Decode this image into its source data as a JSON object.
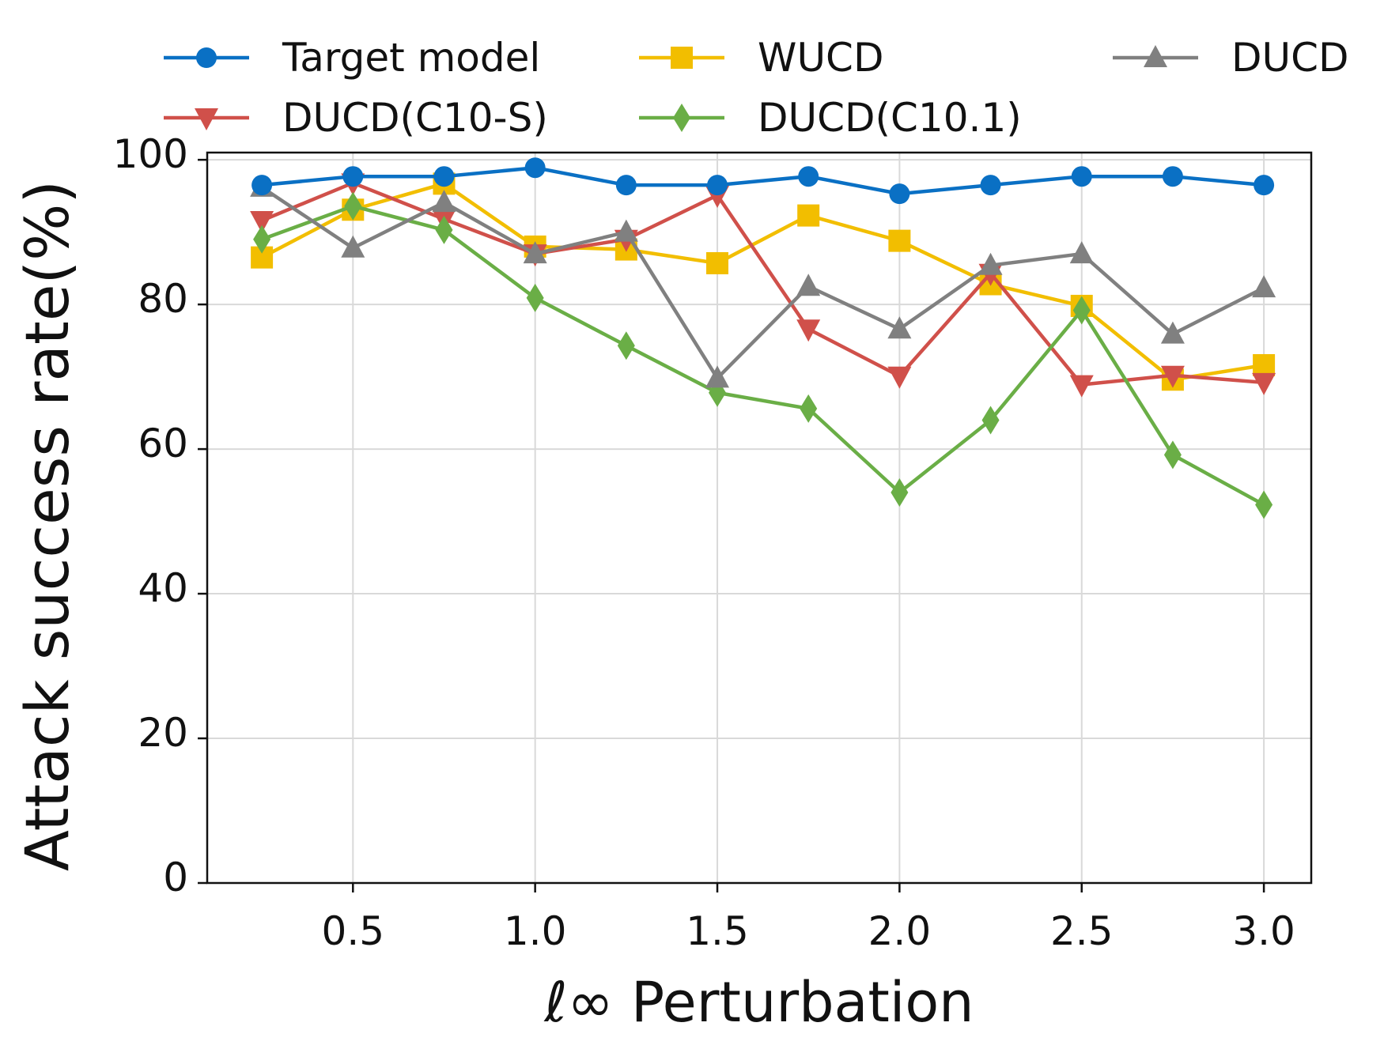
{
  "chart_data": {
    "type": "line",
    "title": "",
    "xlabel": "ℓ∞ Perturbation",
    "ylabel": "Attack success rate(%)",
    "xlim": [
      0.1,
      3.13
    ],
    "ylim": [
      0,
      101
    ],
    "xticks": [
      0.5,
      1.0,
      1.5,
      2.0,
      2.5,
      3.0
    ],
    "xtick_labels": [
      "0.5",
      "1.0",
      "1.5",
      "2.0",
      "2.5",
      "3.0"
    ],
    "yticks": [
      0,
      20,
      40,
      60,
      80,
      100
    ],
    "ytick_labels": [
      "0",
      "20",
      "40",
      "60",
      "80",
      "100"
    ],
    "grid": true,
    "legend_position": "top",
    "x": [
      0.25,
      0.5,
      0.75,
      1.0,
      1.25,
      1.5,
      1.75,
      2.0,
      2.25,
      2.5,
      2.75,
      3.0
    ],
    "series": [
      {
        "name": "Target model",
        "color": "#0A70C4",
        "marker": "circle",
        "values": [
          96.5,
          97.7,
          97.7,
          98.9,
          96.5,
          96.5,
          97.7,
          95.3,
          96.5,
          97.7,
          97.7,
          96.5
        ]
      },
      {
        "name": "WUCD",
        "color": "#F2BE00",
        "marker": "square",
        "values": [
          86.5,
          93.1,
          96.7,
          88.0,
          87.6,
          85.7,
          92.3,
          88.8,
          82.8,
          79.8,
          69.6,
          71.6
        ]
      },
      {
        "name": "DUCD",
        "color": "#808080",
        "marker": "triangle-up",
        "values": [
          96.2,
          87.8,
          94.1,
          87.0,
          90.0,
          69.8,
          82.5,
          76.6,
          85.4,
          87.0,
          75.9,
          82.3
        ]
      },
      {
        "name": "DUCD(C10-S)",
        "color": "#D0504A",
        "marker": "triangle-down",
        "values": [
          91.6,
          96.8,
          91.8,
          87.0,
          89.0,
          95.1,
          76.6,
          70.1,
          84.3,
          68.9,
          70.2,
          69.2
        ]
      },
      {
        "name": "DUCD(C10.1)",
        "color": "#6AAE46",
        "marker": "diamond",
        "values": [
          89.0,
          93.6,
          90.3,
          80.9,
          74.3,
          67.8,
          65.6,
          54.0,
          64.0,
          79.2,
          59.2,
          52.3
        ]
      }
    ]
  }
}
